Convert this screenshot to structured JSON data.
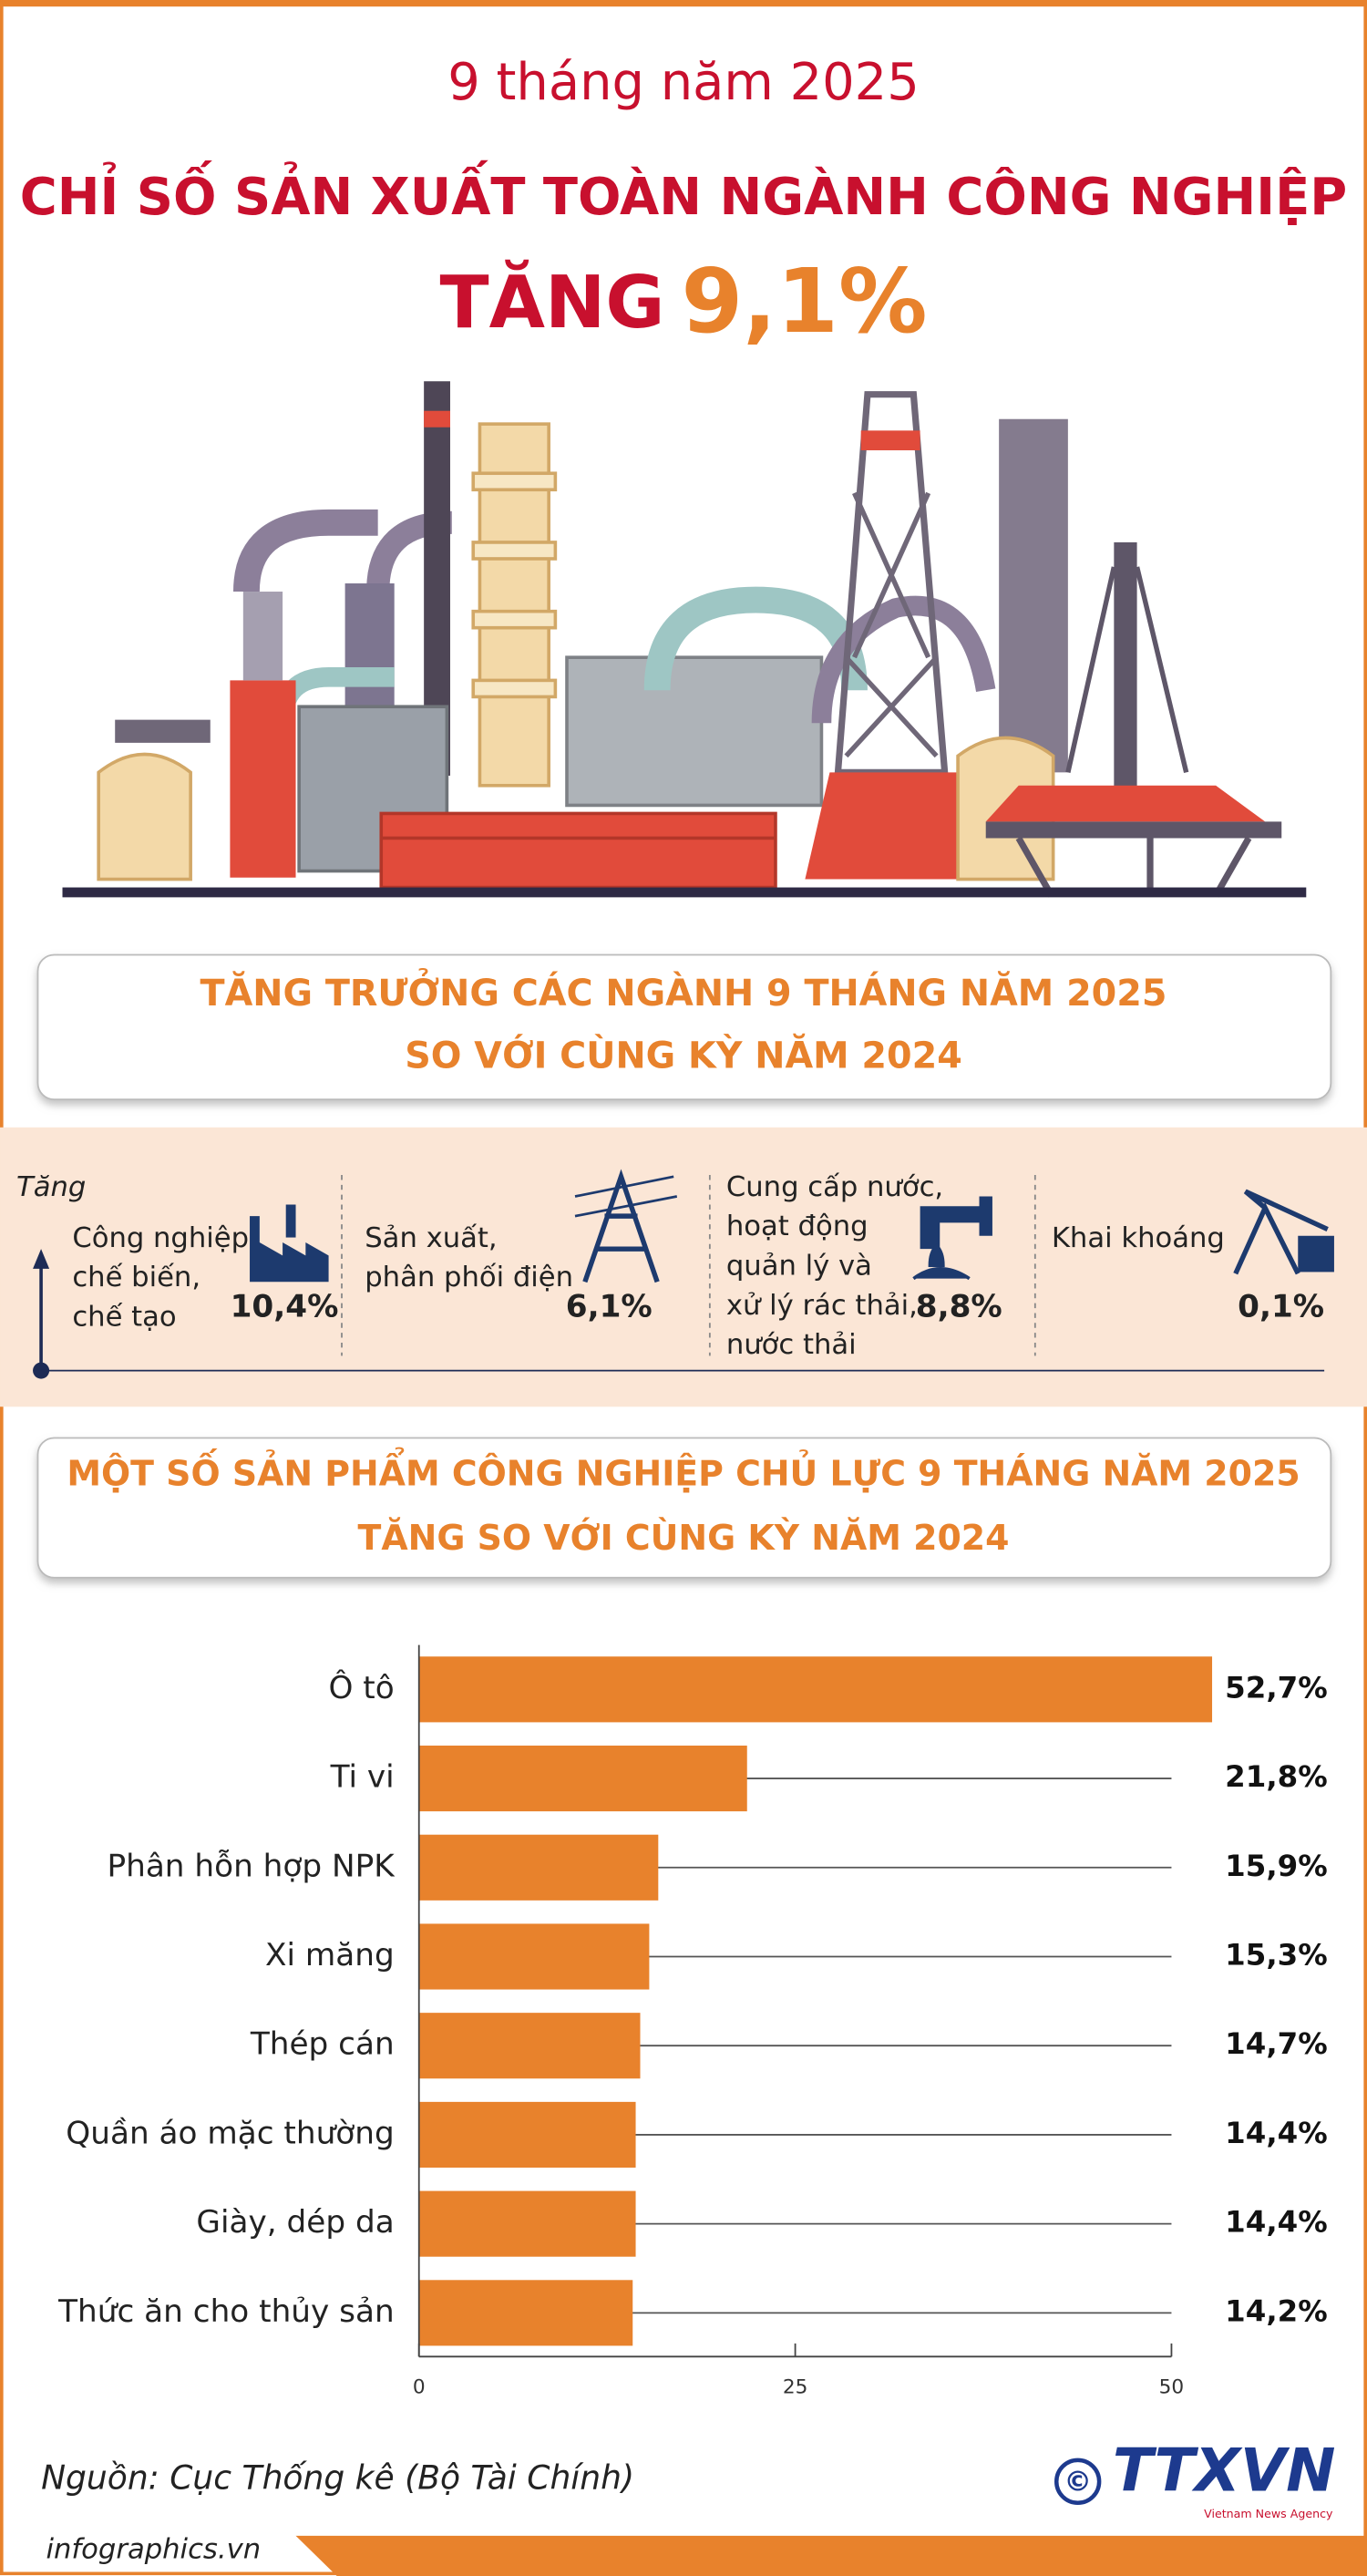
{
  "header": {
    "subtitle": "9 tháng năm 2025",
    "title": "CHỈ SỐ SẢN XUẤT TOÀN NGÀNH CÔNG NGHIỆP",
    "headline_word": "TĂNG",
    "headline_value": "9,1%"
  },
  "section1": {
    "lines": [
      "TĂNG TRƯỞNG CÁC NGÀNH 9 THÁNG NĂM 2025",
      "SO VỚI CÙNG KỲ NĂM 2024"
    ]
  },
  "sectors": {
    "axis_label": "Tăng",
    "items": [
      {
        "lines": [
          "Công nghiệp",
          "chế biến,",
          "chế tạo"
        ],
        "value": "10,4%"
      },
      {
        "lines": [
          "Sản xuất,",
          "phân phối điện"
        ],
        "value": "6,1%"
      },
      {
        "lines": [
          "Cung cấp nước,",
          "hoạt động",
          "quản lý và",
          "xử lý rác thải,",
          "nước thải"
        ],
        "value": "8,8%"
      },
      {
        "lines": [
          "Khai khoáng"
        ],
        "value": "0,1%"
      }
    ]
  },
  "section2": {
    "lines": [
      "MỘT SỐ SẢN PHẨM CÔNG NGHIỆP CHỦ LỰC 9 THÁNG NĂM 2025",
      "TĂNG SO VỚI CÙNG KỲ NĂM 2024"
    ]
  },
  "chart_data": {
    "type": "bar",
    "orientation": "horizontal",
    "categories": [
      "Ô tô",
      "Ti vi",
      "Phân hỗn hợp NPK",
      "Xi măng",
      "Thép cán",
      "Quần áo mặc thường",
      "Giày, dép da",
      "Thức ăn cho thủy sản"
    ],
    "values": [
      52.7,
      21.8,
      15.9,
      15.3,
      14.7,
      14.4,
      14.4,
      14.2
    ],
    "value_labels": [
      "52,7%",
      "21,8%",
      "15,9%",
      "15,3%",
      "14,7%",
      "14,4%",
      "14,4%",
      "14,2%"
    ],
    "color": "#e8822c",
    "xlim": [
      0,
      50
    ],
    "xticks": [
      0,
      25,
      50
    ]
  },
  "footer": {
    "source": "Nguồn: Cục Thống kê (Bộ Tài Chính)",
    "site": "infographics.vn",
    "copyright": "©",
    "logo": "TTXVN",
    "logo_sub": "Vietnam News Agency"
  }
}
